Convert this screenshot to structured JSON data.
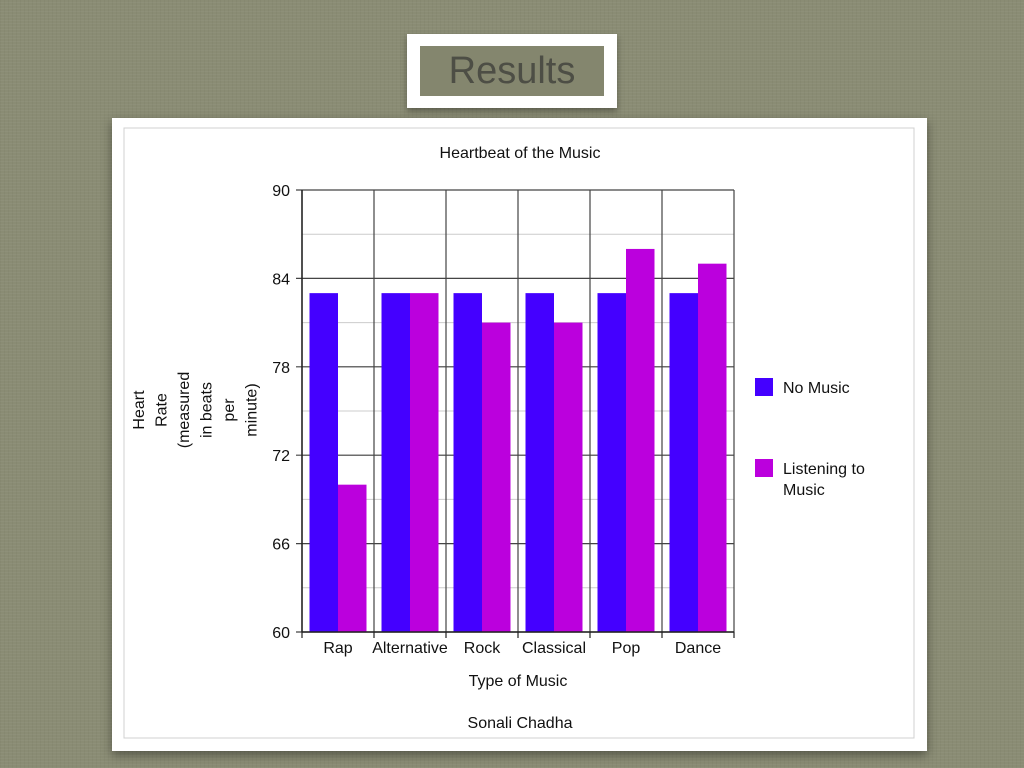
{
  "slide": {
    "title": "Results"
  },
  "colors": {
    "no_music": "#4400ff",
    "listening": "#bb00dd",
    "grid_major": "#444444",
    "grid_minor": "#cccccc"
  },
  "chart_data": {
    "type": "bar",
    "title": "Heartbeat of the Music",
    "xlabel": "Type of Music",
    "ylabel": [
      "Heart",
      "Rate",
      "(measured",
      "in beats",
      "per",
      "minute)"
    ],
    "footer": "Sonali Chadha",
    "categories": [
      "Rap",
      "Alternative",
      "Rock",
      "Classical",
      "Pop",
      "Dance"
    ],
    "series": [
      {
        "name": "No Music",
        "values": [
          83,
          83,
          83,
          83,
          83,
          83
        ]
      },
      {
        "name": "Listening to Music",
        "name_lines": [
          "Listening to",
          "Music"
        ],
        "values": [
          70,
          83,
          81,
          81,
          86,
          85
        ]
      }
    ],
    "ylim": [
      60,
      90
    ],
    "yticks": [
      60,
      66,
      72,
      78,
      84,
      90
    ],
    "legend_position": "right",
    "grid": true
  }
}
